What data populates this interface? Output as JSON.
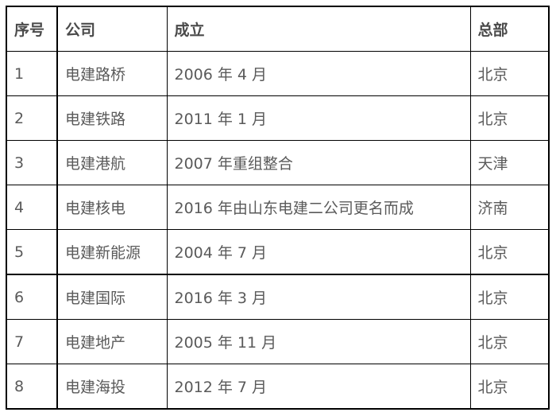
{
  "table": {
    "headers": [
      "序号",
      "公司",
      "成立",
      "总部"
    ],
    "rows": [
      [
        "1",
        "电建路桥",
        "2006 年 4 月",
        "北京"
      ],
      [
        "2",
        "电建铁路",
        "2011 年 1 月",
        "北京"
      ],
      [
        "3",
        "电建港航",
        "2007 年重组整合",
        "天津"
      ],
      [
        "4",
        "电建核电",
        "2016 年由山东电建二公司更名而成",
        "济南"
      ],
      [
        "5",
        "电建新能源",
        "2004 年 7 月",
        "北京"
      ],
      [
        "6",
        "电建国际",
        "2016 年 3 月",
        "北京"
      ],
      [
        "7",
        "电建地产",
        "2005 年 11 月",
        "北京"
      ],
      [
        "8",
        "电建海投",
        "2012 年 7 月",
        "北京"
      ]
    ]
  }
}
